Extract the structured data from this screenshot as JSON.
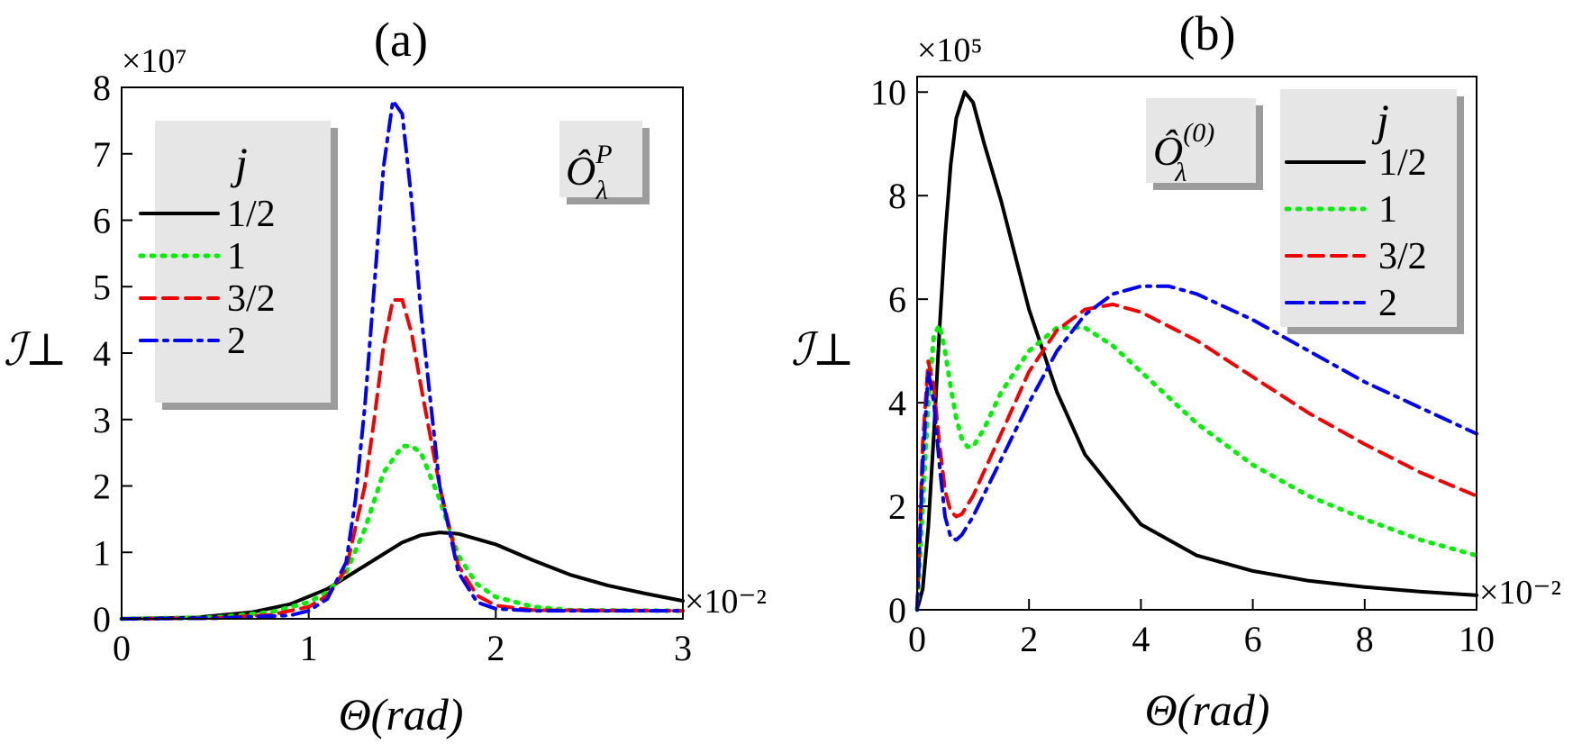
{
  "chart_data": [
    {
      "type": "line",
      "panel_label": "(a)",
      "xlabel": "Θ(rad)",
      "ylabel": "ℐ⊥",
      "x_multiplier": "×10⁻²",
      "y_multiplier": "×10⁷",
      "xlim": [
        0,
        3
      ],
      "ylim": [
        0,
        8
      ],
      "xticks": [
        0,
        1,
        2,
        3
      ],
      "yticks": [
        0,
        1,
        2,
        3,
        4,
        5,
        6,
        7,
        8
      ],
      "grid": false,
      "legend_title": "j",
      "operator_label": "Ô_λ^P",
      "legend_position": "top-left",
      "series": [
        {
          "name": "1/2",
          "color": "#000000",
          "style": "solid",
          "x": [
            0,
            0.4,
            0.7,
            0.9,
            1.1,
            1.3,
            1.5,
            1.6,
            1.7,
            1.8,
            2.0,
            2.2,
            2.4,
            2.6,
            2.8,
            3.0
          ],
          "y": [
            0,
            0.02,
            0.1,
            0.22,
            0.45,
            0.8,
            1.15,
            1.26,
            1.3,
            1.28,
            1.12,
            0.88,
            0.66,
            0.5,
            0.38,
            0.27
          ]
        },
        {
          "name": "1",
          "color": "#00ee00",
          "style": "dotted",
          "x": [
            0,
            0.5,
            0.8,
            1.0,
            1.1,
            1.2,
            1.3,
            1.4,
            1.5,
            1.55,
            1.6,
            1.7,
            1.8,
            1.9,
            2.0,
            2.2,
            2.4,
            3.0
          ],
          "y": [
            0,
            0.02,
            0.1,
            0.25,
            0.4,
            0.7,
            1.35,
            2.2,
            2.6,
            2.6,
            2.5,
            1.8,
            0.95,
            0.52,
            0.33,
            0.18,
            0.13,
            0.12
          ]
        },
        {
          "name": "3/2",
          "color": "#ee0000",
          "style": "dashed",
          "x": [
            0,
            0.5,
            0.8,
            1.0,
            1.1,
            1.2,
            1.3,
            1.35,
            1.4,
            1.45,
            1.5,
            1.55,
            1.6,
            1.7,
            1.8,
            1.9,
            2.0,
            2.2,
            3.0
          ],
          "y": [
            0,
            0.01,
            0.06,
            0.18,
            0.35,
            0.75,
            2.0,
            3.0,
            4.1,
            4.8,
            4.8,
            4.3,
            3.5,
            2.0,
            0.8,
            0.35,
            0.2,
            0.13,
            0.12
          ]
        },
        {
          "name": "2",
          "color": "#0000ee",
          "style": "dashdot",
          "x": [
            0,
            0.5,
            0.9,
            1.0,
            1.1,
            1.2,
            1.25,
            1.3,
            1.35,
            1.4,
            1.45,
            1.5,
            1.55,
            1.6,
            1.7,
            1.8,
            1.9,
            2.0,
            2.2,
            3.0
          ],
          "y": [
            0,
            0.01,
            0.05,
            0.12,
            0.3,
            0.85,
            1.8,
            3.2,
            5.0,
            6.8,
            7.8,
            7.6,
            6.3,
            4.6,
            2.0,
            0.7,
            0.25,
            0.15,
            0.12,
            0.12
          ]
        }
      ]
    },
    {
      "type": "line",
      "panel_label": "(b)",
      "xlabel": "Θ(rad)",
      "ylabel": "ℐ⊥",
      "x_multiplier": "×10⁻²",
      "y_multiplier": "×10⁵",
      "xlim": [
        0,
        10
      ],
      "ylim": [
        0,
        10.3
      ],
      "xticks": [
        0,
        2,
        4,
        6,
        8,
        10
      ],
      "yticks": [
        0,
        2,
        4,
        6,
        8,
        10
      ],
      "grid": false,
      "legend_title": "j",
      "operator_label": "Ô_λ^(0)",
      "legend_position": "top-right",
      "series": [
        {
          "name": "1/2",
          "color": "#000000",
          "style": "solid",
          "x": [
            0,
            0.1,
            0.2,
            0.3,
            0.4,
            0.5,
            0.6,
            0.7,
            0.85,
            1.0,
            1.2,
            1.5,
            2.0,
            2.5,
            3.0,
            4.0,
            5.0,
            6.0,
            7.0,
            8.0,
            9.0,
            10.0
          ],
          "y": [
            0,
            0.4,
            1.6,
            3.4,
            5.4,
            7.2,
            8.6,
            9.5,
            10.0,
            9.8,
            9.0,
            7.9,
            5.8,
            4.2,
            3.0,
            1.65,
            1.05,
            0.75,
            0.56,
            0.44,
            0.35,
            0.28
          ]
        },
        {
          "name": "1",
          "color": "#00ee00",
          "style": "dotted",
          "x": [
            0,
            0.1,
            0.2,
            0.3,
            0.4,
            0.5,
            0.6,
            0.7,
            0.8,
            0.9,
            1.0,
            1.2,
            1.5,
            2.0,
            2.5,
            3.0,
            3.5,
            4.0,
            5.0,
            6.0,
            7.0,
            8.0,
            9.0,
            10.0
          ],
          "y": [
            0,
            2.0,
            4.0,
            5.3,
            5.5,
            5.0,
            4.3,
            3.7,
            3.3,
            3.15,
            3.15,
            3.5,
            4.2,
            5.0,
            5.45,
            5.45,
            5.1,
            4.6,
            3.6,
            2.8,
            2.2,
            1.75,
            1.35,
            1.05
          ]
        },
        {
          "name": "3/2",
          "color": "#ee0000",
          "style": "dashed",
          "x": [
            0,
            0.1,
            0.2,
            0.3,
            0.4,
            0.5,
            0.6,
            0.7,
            0.8,
            1.0,
            1.5,
            2.0,
            2.5,
            3.0,
            3.5,
            4.0,
            5.0,
            6.0,
            7.0,
            8.0,
            9.0,
            10.0
          ],
          "y": [
            0,
            3.2,
            4.8,
            4.3,
            3.2,
            2.3,
            1.9,
            1.8,
            1.85,
            2.2,
            3.4,
            4.6,
            5.4,
            5.8,
            5.9,
            5.75,
            5.2,
            4.5,
            3.8,
            3.2,
            2.65,
            2.2
          ]
        },
        {
          "name": "2",
          "color": "#0000ee",
          "style": "dashdot",
          "x": [
            0,
            0.1,
            0.2,
            0.3,
            0.4,
            0.5,
            0.6,
            0.7,
            0.8,
            1.0,
            1.5,
            2.0,
            2.5,
            3.0,
            3.5,
            4.0,
            4.5,
            5.0,
            6.0,
            7.0,
            8.0,
            9.0,
            10.0
          ],
          "y": [
            0,
            2.8,
            4.6,
            4.0,
            2.8,
            1.8,
            1.4,
            1.35,
            1.45,
            1.8,
            2.9,
            4.0,
            5.0,
            5.7,
            6.1,
            6.25,
            6.25,
            6.1,
            5.6,
            5.0,
            4.4,
            3.9,
            3.4
          ]
        }
      ]
    }
  ]
}
